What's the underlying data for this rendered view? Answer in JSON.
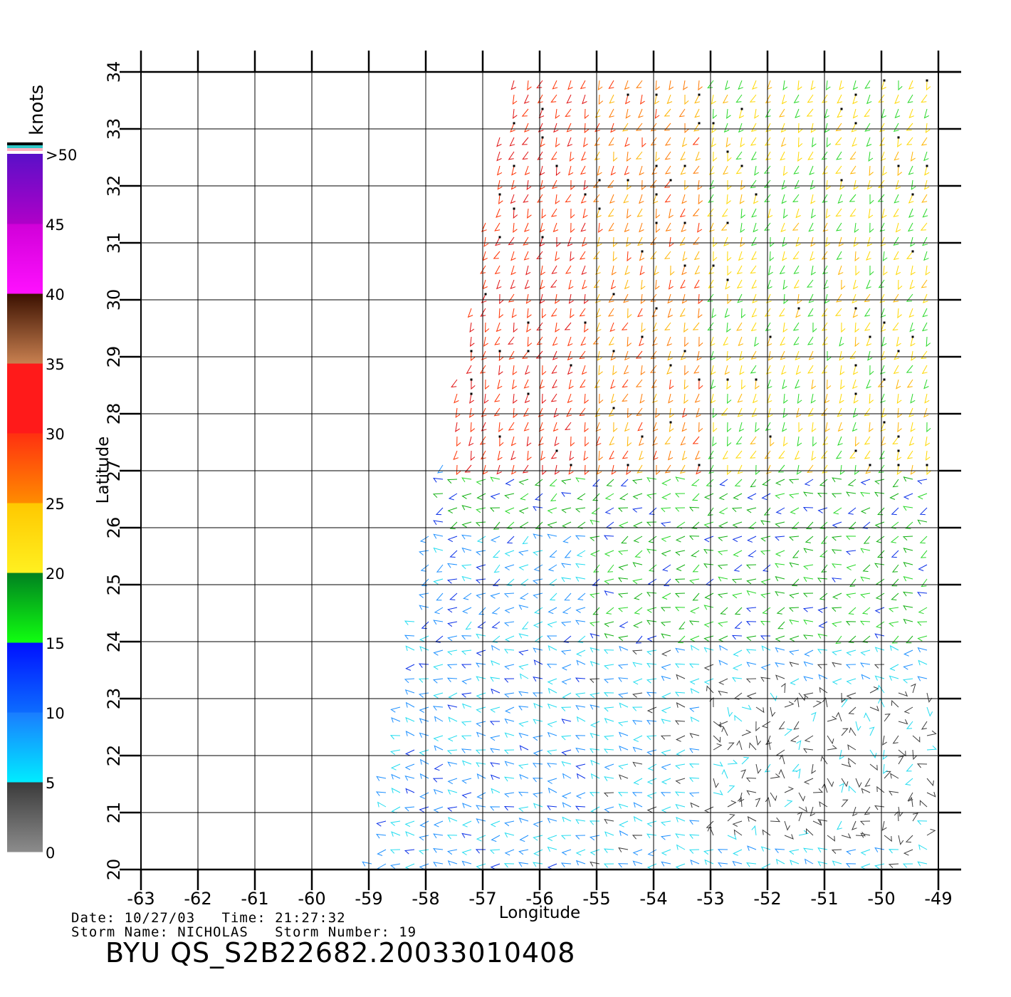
{
  "map": {
    "longitude_label": "Longitude",
    "latitude_label": "Latitude",
    "lon_range": [
      -63,
      -49
    ],
    "lat_range": [
      20,
      34
    ],
    "lon_ticks": [
      "-63",
      "-62",
      "-61",
      "-60",
      "-59",
      "-58",
      "-57",
      "-56",
      "-55",
      "-54",
      "-53",
      "-52",
      "-51",
      "-50",
      "-49"
    ],
    "lat_ticks": [
      "20",
      "21",
      "22",
      "23",
      "24",
      "25",
      "26",
      "27",
      "28",
      "29",
      "30",
      "31",
      "32",
      "33",
      "34"
    ],
    "grid": true
  },
  "colorbar": {
    "unit_label": "knots",
    "labels": [
      "0",
      "5",
      "10",
      "15",
      "20",
      "25",
      "30",
      "35",
      "40",
      "45",
      ">50"
    ],
    "segments": [
      {
        "from": 0,
        "to": 5,
        "top": "#3a3a3a",
        "bottom": "#8c8c8c"
      },
      {
        "from": 5,
        "to": 10,
        "top": "#1a7cff",
        "bottom": "#00ecff"
      },
      {
        "from": 10,
        "to": 15,
        "top": "#0010ff",
        "bottom": "#0c6cff"
      },
      {
        "from": 15,
        "to": 20,
        "top": "#008020",
        "bottom": "#10ff10"
      },
      {
        "from": 20,
        "to": 25,
        "top": "#ffc800",
        "bottom": "#fff020"
      },
      {
        "from": 25,
        "to": 30,
        "top": "#ff3010",
        "bottom": "#ff8c00"
      },
      {
        "from": 30,
        "to": 35,
        "top": "#ff1a1a",
        "bottom": "#ff1a1a"
      },
      {
        "from": 35,
        "to": 40,
        "top": "#3a1000",
        "bottom": "#c88050"
      },
      {
        "from": 40,
        "to": 45,
        "top": "#d000d8",
        "bottom": "#ff10ff"
      },
      {
        "from": 45,
        "to": 50,
        "top": "#5a10c8",
        "bottom": "#b000c8"
      }
    ],
    "over_colors": [
      "#000000",
      "#30c8c8",
      "#ffb0c0"
    ]
  },
  "wind_field": {
    "swath_corners_lonlat": [
      [
        -56.5,
        34.0
      ],
      [
        -49.0,
        34.0
      ],
      [
        -49.0,
        20.0
      ],
      [
        -59.0,
        20.0
      ]
    ],
    "grid_step_deg": 0.25,
    "regions": [
      {
        "name": "brown-red band",
        "lon": [
          -57.6,
          -55.0
        ],
        "lat": [
          27.0,
          34.0
        ],
        "knots": 31
      },
      {
        "name": "orange band",
        "lon": [
          -55.0,
          -53.0
        ],
        "lat": [
          27.0,
          34.0
        ],
        "knots": 26
      },
      {
        "name": "yellow north-east",
        "lon": [
          -53.0,
          -49.0
        ],
        "lat": [
          26.5,
          34.0
        ],
        "knots": 21
      },
      {
        "name": "mixed band",
        "lon": [
          -58.0,
          -49.0
        ],
        "lat": [
          24.0,
          27.0
        ],
        "knots": 17
      },
      {
        "name": "blue south-west",
        "lon": [
          -59.0,
          -55.0
        ],
        "lat": [
          20.0,
          26.0
        ],
        "knots": 9
      },
      {
        "name": "light-blue south",
        "lon": [
          -55.0,
          -49.0
        ],
        "lat": [
          20.0,
          24.0
        ],
        "knots": 7
      },
      {
        "name": "calm area",
        "lon": [
          -53.0,
          -49.0
        ],
        "lat": [
          20.5,
          23.2
        ],
        "knots": 3
      }
    ],
    "direction_note": "north-easterly in north, easterly in south"
  },
  "footer": {
    "date_line": "Date: 10/27/03   Time: 21:27:32",
    "storm_line": "Storm Name: NICHOLAS   Storm Number: 19",
    "product_id": "BYU QS_S2B22682.20033010408"
  }
}
